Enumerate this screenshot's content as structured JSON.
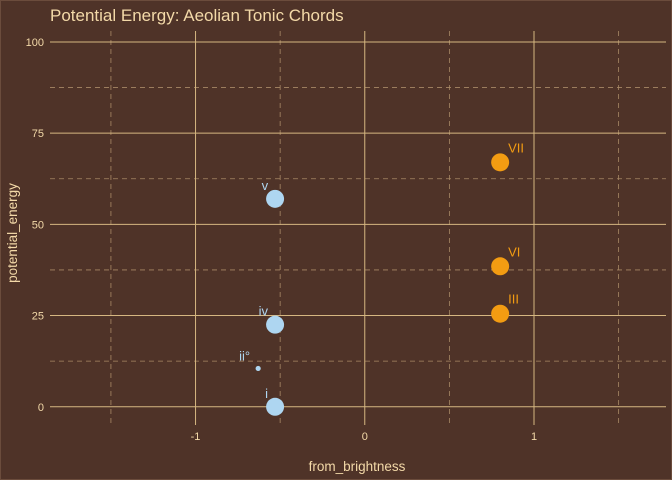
{
  "chart_data": {
    "type": "scatter",
    "title": "Potential Energy: Aeolian Tonic Chords",
    "xlabel": "from_brightness",
    "ylabel": "potential_energy",
    "xlim": [
      -1.86,
      1.78
    ],
    "ylim": [
      -5,
      103
    ],
    "x_ticks": [
      -1,
      0,
      1
    ],
    "x_tick_labels": [
      "-1",
      "0",
      "1"
    ],
    "x_minor": [
      -1.5,
      -0.5,
      0.5,
      1.5
    ],
    "y_ticks": [
      0,
      25,
      50,
      75,
      100
    ],
    "y_tick_labels": [
      "0",
      "25",
      "50",
      "75",
      "100"
    ],
    "y_minor": [
      12.5,
      37.5,
      62.5,
      87.5
    ],
    "grid": true,
    "legend": "none",
    "colors": {
      "major": "#f39c12",
      "minor": "#aed6f1"
    },
    "points": [
      {
        "label": "i",
        "x": -0.53,
        "y": 0,
        "size": "large",
        "group": "minor"
      },
      {
        "label": "ii°",
        "x": -0.63,
        "y": 10.5,
        "size": "small",
        "group": "minor"
      },
      {
        "label": "iv",
        "x": -0.53,
        "y": 22.5,
        "size": "large",
        "group": "minor"
      },
      {
        "label": "v",
        "x": -0.53,
        "y": 57,
        "size": "large",
        "group": "minor"
      },
      {
        "label": "III",
        "x": 0.8,
        "y": 25.5,
        "size": "large",
        "group": "major"
      },
      {
        "label": "VI",
        "x": 0.8,
        "y": 38.5,
        "size": "large",
        "group": "major"
      },
      {
        "label": "VII",
        "x": 0.8,
        "y": 67,
        "size": "large",
        "group": "major"
      }
    ]
  }
}
